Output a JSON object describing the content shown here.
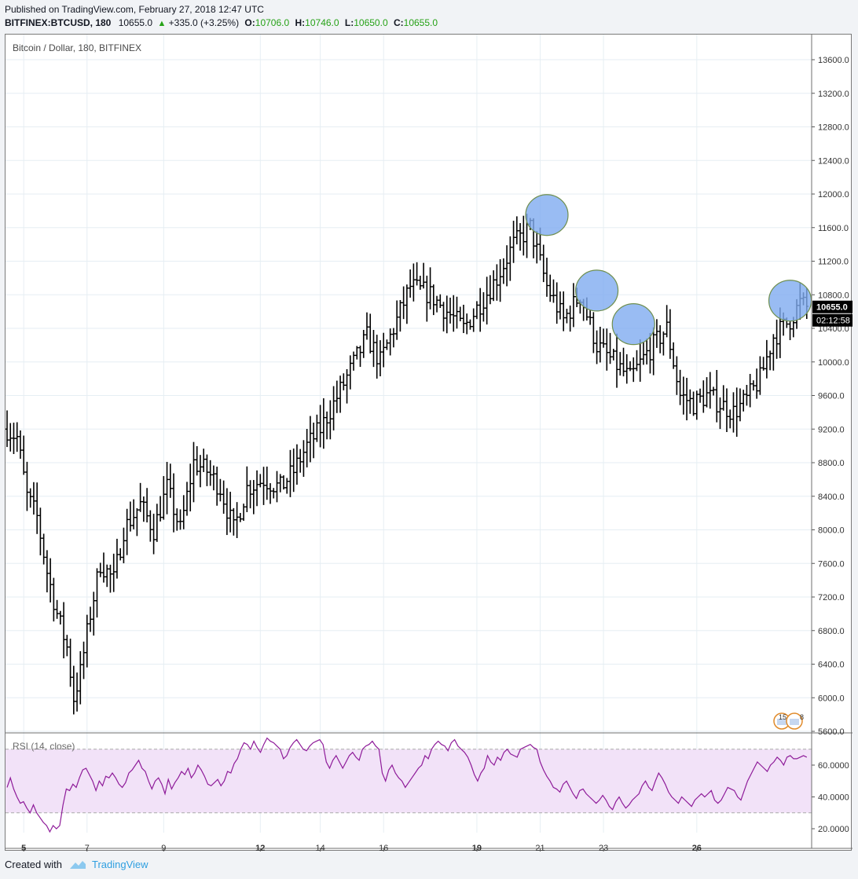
{
  "header": {
    "published": "Published on TradingView.com, February 27, 2018 12:47 UTC",
    "symbol": "BITFINEX:BTCUSD, 180",
    "last": "10655.0",
    "change": "+335.0 (+3.25%)",
    "o_label": "O:",
    "o_value": "10706.0",
    "h_label": "H:",
    "h_value": "10746.0",
    "l_label": "L:",
    "l_value": "10650.0",
    "c_label": "C:",
    "c_value": "10655.0"
  },
  "footer": {
    "created_with": "Created with",
    "brand": "TradingView"
  },
  "chart_data": [
    {
      "type": "ohlc",
      "title": "Bitcoin / Dollar, 180, BITFINEX",
      "ylim": [
        5600,
        13800
      ],
      "y_ticks": [
        "13600.0",
        "13200.0",
        "12800.0",
        "12400.0",
        "12000.0",
        "11600.0",
        "11200.0",
        "10800.0",
        "10400.0",
        "10000.0",
        "9600.0",
        "9200.0",
        "8800.0",
        "8400.0",
        "8000.0",
        "7600.0",
        "7200.0",
        "6800.0",
        "6400.0",
        "6000.0",
        "5600.0"
      ],
      "x_ticks": [
        "5",
        "7",
        "9",
        "12",
        "14",
        "16",
        "19",
        "21",
        "23",
        "26"
      ],
      "x_ticks_bold": [
        "5",
        "12",
        "19",
        "26"
      ],
      "last_price_label": "10655.0",
      "countdown_label": "02:12:58",
      "anchors": [
        [
          0,
          9200
        ],
        [
          3,
          9100
        ],
        [
          6,
          8400
        ],
        [
          9,
          8150
        ],
        [
          12,
          7500
        ],
        [
          15,
          7000
        ],
        [
          18,
          6600
        ],
        [
          20,
          6000
        ],
        [
          22,
          6300
        ],
        [
          25,
          7000
        ],
        [
          28,
          7600
        ],
        [
          32,
          7400
        ],
        [
          35,
          8000
        ],
        [
          40,
          8300
        ],
        [
          44,
          8000
        ],
        [
          48,
          8500
        ],
        [
          52,
          8000
        ],
        [
          56,
          8800
        ],
        [
          60,
          8700
        ],
        [
          64,
          8500
        ],
        [
          68,
          8000
        ],
        [
          72,
          8500
        ],
        [
          77,
          8600
        ],
        [
          82,
          8500
        ],
        [
          86,
          8700
        ],
        [
          90,
          9000
        ],
        [
          94,
          9200
        ],
        [
          98,
          9500
        ],
        [
          103,
          9900
        ],
        [
          108,
          10300
        ],
        [
          112,
          10000
        ],
        [
          116,
          10400
        ],
        [
          121,
          10900
        ],
        [
          127,
          10800
        ],
        [
          132,
          10600
        ],
        [
          137,
          10400
        ],
        [
          142,
          10700
        ],
        [
          147,
          11000
        ],
        [
          152,
          11400
        ],
        [
          157,
          11600
        ],
        [
          162,
          10900
        ],
        [
          167,
          10500
        ],
        [
          172,
          10800
        ],
        [
          177,
          10200
        ],
        [
          182,
          10000
        ],
        [
          187,
          9800
        ],
        [
          192,
          10100
        ],
        [
          198,
          10400
        ],
        [
          202,
          9600
        ],
        [
          206,
          9500
        ],
        [
          210,
          9600
        ],
        [
          214,
          9500
        ],
        [
          218,
          9400
        ],
        [
          222,
          9550
        ],
        [
          226,
          9800
        ],
        [
          230,
          10300
        ],
        [
          235,
          10500
        ],
        [
          238,
          10700
        ],
        [
          240,
          10650
        ]
      ],
      "highlights": [
        {
          "x": 162,
          "price": 11750
        },
        {
          "x": 177,
          "price": 10850
        },
        {
          "x": 188,
          "price": 10450
        },
        {
          "x": 235,
          "price": 10730
        }
      ],
      "flags_label": "15",
      "flags_count": "8"
    },
    {
      "type": "line",
      "title": "RSI (14, close)",
      "ylim": [
        16,
        80
      ],
      "y_ticks": [
        "60.0000",
        "40.0000",
        "20.0000"
      ],
      "band": [
        30,
        70
      ],
      "color": "#8e1b99",
      "values": [
        46,
        52,
        45,
        40,
        36,
        37,
        33,
        30,
        35,
        30,
        27,
        24,
        22,
        18,
        22,
        20,
        22,
        35,
        45,
        44,
        48,
        46,
        52,
        57,
        58,
        54,
        50,
        44,
        50,
        47,
        53,
        52,
        55,
        52,
        48,
        46,
        49,
        55,
        57,
        60,
        63,
        58,
        56,
        50,
        45,
        50,
        52,
        48,
        42,
        51,
        45,
        49,
        52,
        56,
        54,
        58,
        52,
        55,
        60,
        57,
        53,
        48,
        47,
        49,
        51,
        47,
        50,
        56,
        55,
        61,
        64,
        70,
        74,
        73,
        70,
        75,
        71,
        68,
        73,
        77,
        75,
        74,
        72,
        70,
        64,
        66,
        71,
        74,
        76,
        73,
        70,
        69,
        72,
        74,
        75,
        76,
        73,
        62,
        58,
        63,
        66,
        62,
        58,
        62,
        66,
        68,
        65,
        63,
        70,
        72,
        73,
        75,
        72,
        70,
        55,
        50,
        57,
        60,
        55,
        52,
        50,
        46,
        49,
        52,
        55,
        58,
        60,
        66,
        64,
        70,
        73,
        75,
        73,
        72,
        69,
        74,
        76,
        72,
        70,
        68,
        65,
        60,
        54,
        50,
        55,
        58,
        66,
        62,
        60,
        65,
        63,
        68,
        70,
        67,
        66,
        65,
        70,
        71,
        72,
        73,
        71,
        70,
        62,
        57,
        53,
        50,
        46,
        45,
        43,
        48,
        50,
        46,
        42,
        39,
        44,
        45,
        42,
        40,
        38,
        36,
        38,
        41,
        38,
        34,
        32,
        37,
        40,
        36,
        33,
        35,
        38,
        40,
        42,
        47,
        50,
        46,
        44,
        50,
        55,
        52,
        48,
        43,
        40,
        38,
        36,
        40,
        38,
        36,
        34,
        38,
        40,
        42,
        40,
        42,
        44,
        38,
        36,
        38,
        42,
        46,
        45,
        44,
        40,
        38,
        44,
        50,
        54,
        58,
        62,
        60,
        58,
        56,
        60,
        62,
        65,
        63,
        60,
        65,
        66,
        64,
        64,
        65,
        66,
        65
      ],
      "x_tick_positions": [
        5,
        24,
        47,
        76,
        94,
        113,
        141,
        160,
        179,
        207
      ]
    }
  ]
}
